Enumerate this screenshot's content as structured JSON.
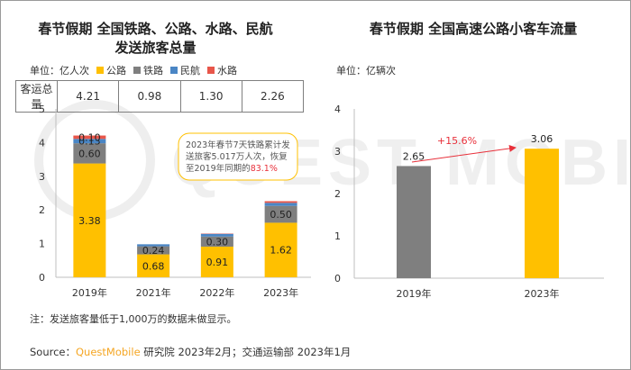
{
  "left": {
    "title_line1": "春节假期 全国铁路、公路、水路、民航",
    "title_line2": "发送旅客总量",
    "unit": "单位：亿人次",
    "legend": [
      {
        "label": "公路",
        "color": "#ffc000"
      },
      {
        "label": "铁路",
        "color": "#7f7f7f"
      },
      {
        "label": "民航",
        "color": "#4a86c5"
      },
      {
        "label": "水路",
        "color": "#e8564a"
      }
    ],
    "table": {
      "row_label": "客运总量",
      "values": [
        "4.21",
        "0.98",
        "1.30",
        "2.26"
      ]
    },
    "annotation": {
      "line1": "2023年春节7天铁路累计发",
      "line2": "送旅客5.017万人次，恢复",
      "line3_prefix": "至2019年同期的",
      "line3_highlight": "83.1%"
    },
    "note": "注：发送旅客量低于1,000万的数据未做显示。"
  },
  "right": {
    "title": "春节假期 全国高速公路小客车流量",
    "unit": "单位：亿辆次",
    "growth_label": "+15.6%"
  },
  "source": {
    "prefix": "Source：",
    "brand": "QuestMobile",
    "rest": " 研究院 2023年2月；交通运输部 2023年1月"
  },
  "chart_data": [
    {
      "type": "bar",
      "stacked": true,
      "categories": [
        "2019年",
        "2021年",
        "2022年",
        "2023年"
      ],
      "series": [
        {
          "name": "公路",
          "color": "#ffc000",
          "values": [
            3.38,
            0.68,
            0.91,
            1.62
          ]
        },
        {
          "name": "铁路",
          "color": "#7f7f7f",
          "values": [
            0.6,
            0.24,
            0.3,
            0.5
          ]
        },
        {
          "name": "民航",
          "color": "#4a86c5",
          "values": [
            0.13,
            0.06,
            0.08,
            0.09
          ]
        },
        {
          "name": "水路",
          "color": "#e8564a",
          "values": [
            0.1,
            0.0,
            0.01,
            0.05
          ]
        }
      ],
      "data_labels": [
        [
          "3.38",
          "0.60",
          "0.13",
          "0.10"
        ],
        [
          "0.68",
          "0.24",
          "",
          ""
        ],
        [
          "0.91",
          "0.30",
          "",
          ""
        ],
        [
          "1.62",
          "0.50",
          "",
          ""
        ]
      ],
      "yticks": [
        "0",
        "1",
        "2",
        "3",
        "4",
        "5"
      ],
      "ylim": [
        0,
        5
      ]
    },
    {
      "type": "bar",
      "categories": [
        "2019年",
        "2023年"
      ],
      "series": [
        {
          "values": [
            2.65,
            3.06
          ],
          "colors": [
            "#7f7f7f",
            "#ffc000"
          ]
        }
      ],
      "data_labels": [
        "2.65",
        "3.06"
      ],
      "yticks": [
        "0",
        "1",
        "2",
        "3",
        "4"
      ],
      "ylim": [
        0,
        4
      ]
    }
  ]
}
